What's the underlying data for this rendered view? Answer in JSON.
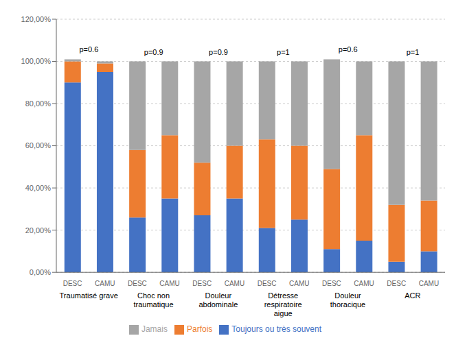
{
  "chart_data": {
    "type": "bar",
    "stacked": true,
    "grid": true,
    "legend": "bottom",
    "categories": [
      "DESC",
      "CAMU",
      "DESC",
      "CAMU",
      "DESC",
      "CAMU",
      "DESC",
      "CAMU",
      "DESC",
      "CAMU",
      "DESC",
      "CAMU"
    ],
    "groups": [
      "Traumatisé grave",
      "Choc non\ntraumatique",
      "Douleur\nabdominale",
      "Détresse\nrespiratoire\naigue",
      "Douleur\nthoracique",
      "ACR"
    ],
    "annotations": [
      "p=0.6",
      "p=0.9",
      "p=0.9",
      "p=1",
      "p=0.6",
      "p=1"
    ],
    "series": [
      {
        "name": "Toujours ou très souvent",
        "color": "#4472C4",
        "values": [
          0.9,
          0.95,
          0.26,
          0.35,
          0.27,
          0.35,
          0.21,
          0.25,
          0.11,
          0.15,
          0.05,
          0.1
        ]
      },
      {
        "name": "Parfois",
        "color": "#ED7D31",
        "values": [
          0.1,
          0.04,
          0.32,
          0.3,
          0.25,
          0.25,
          0.42,
          0.35,
          0.38,
          0.5,
          0.27,
          0.24
        ]
      },
      {
        "name": "Jamais",
        "color": "#A6A6A6",
        "values": [
          0.01,
          0.01,
          0.42,
          0.35,
          0.48,
          0.4,
          0.37,
          0.4,
          0.52,
          0.35,
          0.68,
          0.66
        ]
      }
    ],
    "ylim": [
      0,
      1.2
    ],
    "yticks": [
      {
        "value": 0.0,
        "label": "0,00%"
      },
      {
        "value": 0.2,
        "label": "20,00%"
      },
      {
        "value": 0.4,
        "label": "40,00%"
      },
      {
        "value": 0.6,
        "label": "60,00%"
      },
      {
        "value": 0.8,
        "label": "80,00%"
      },
      {
        "value": 1.0,
        "label": "100,00%"
      },
      {
        "value": 1.2,
        "label": "120,00%"
      }
    ]
  }
}
